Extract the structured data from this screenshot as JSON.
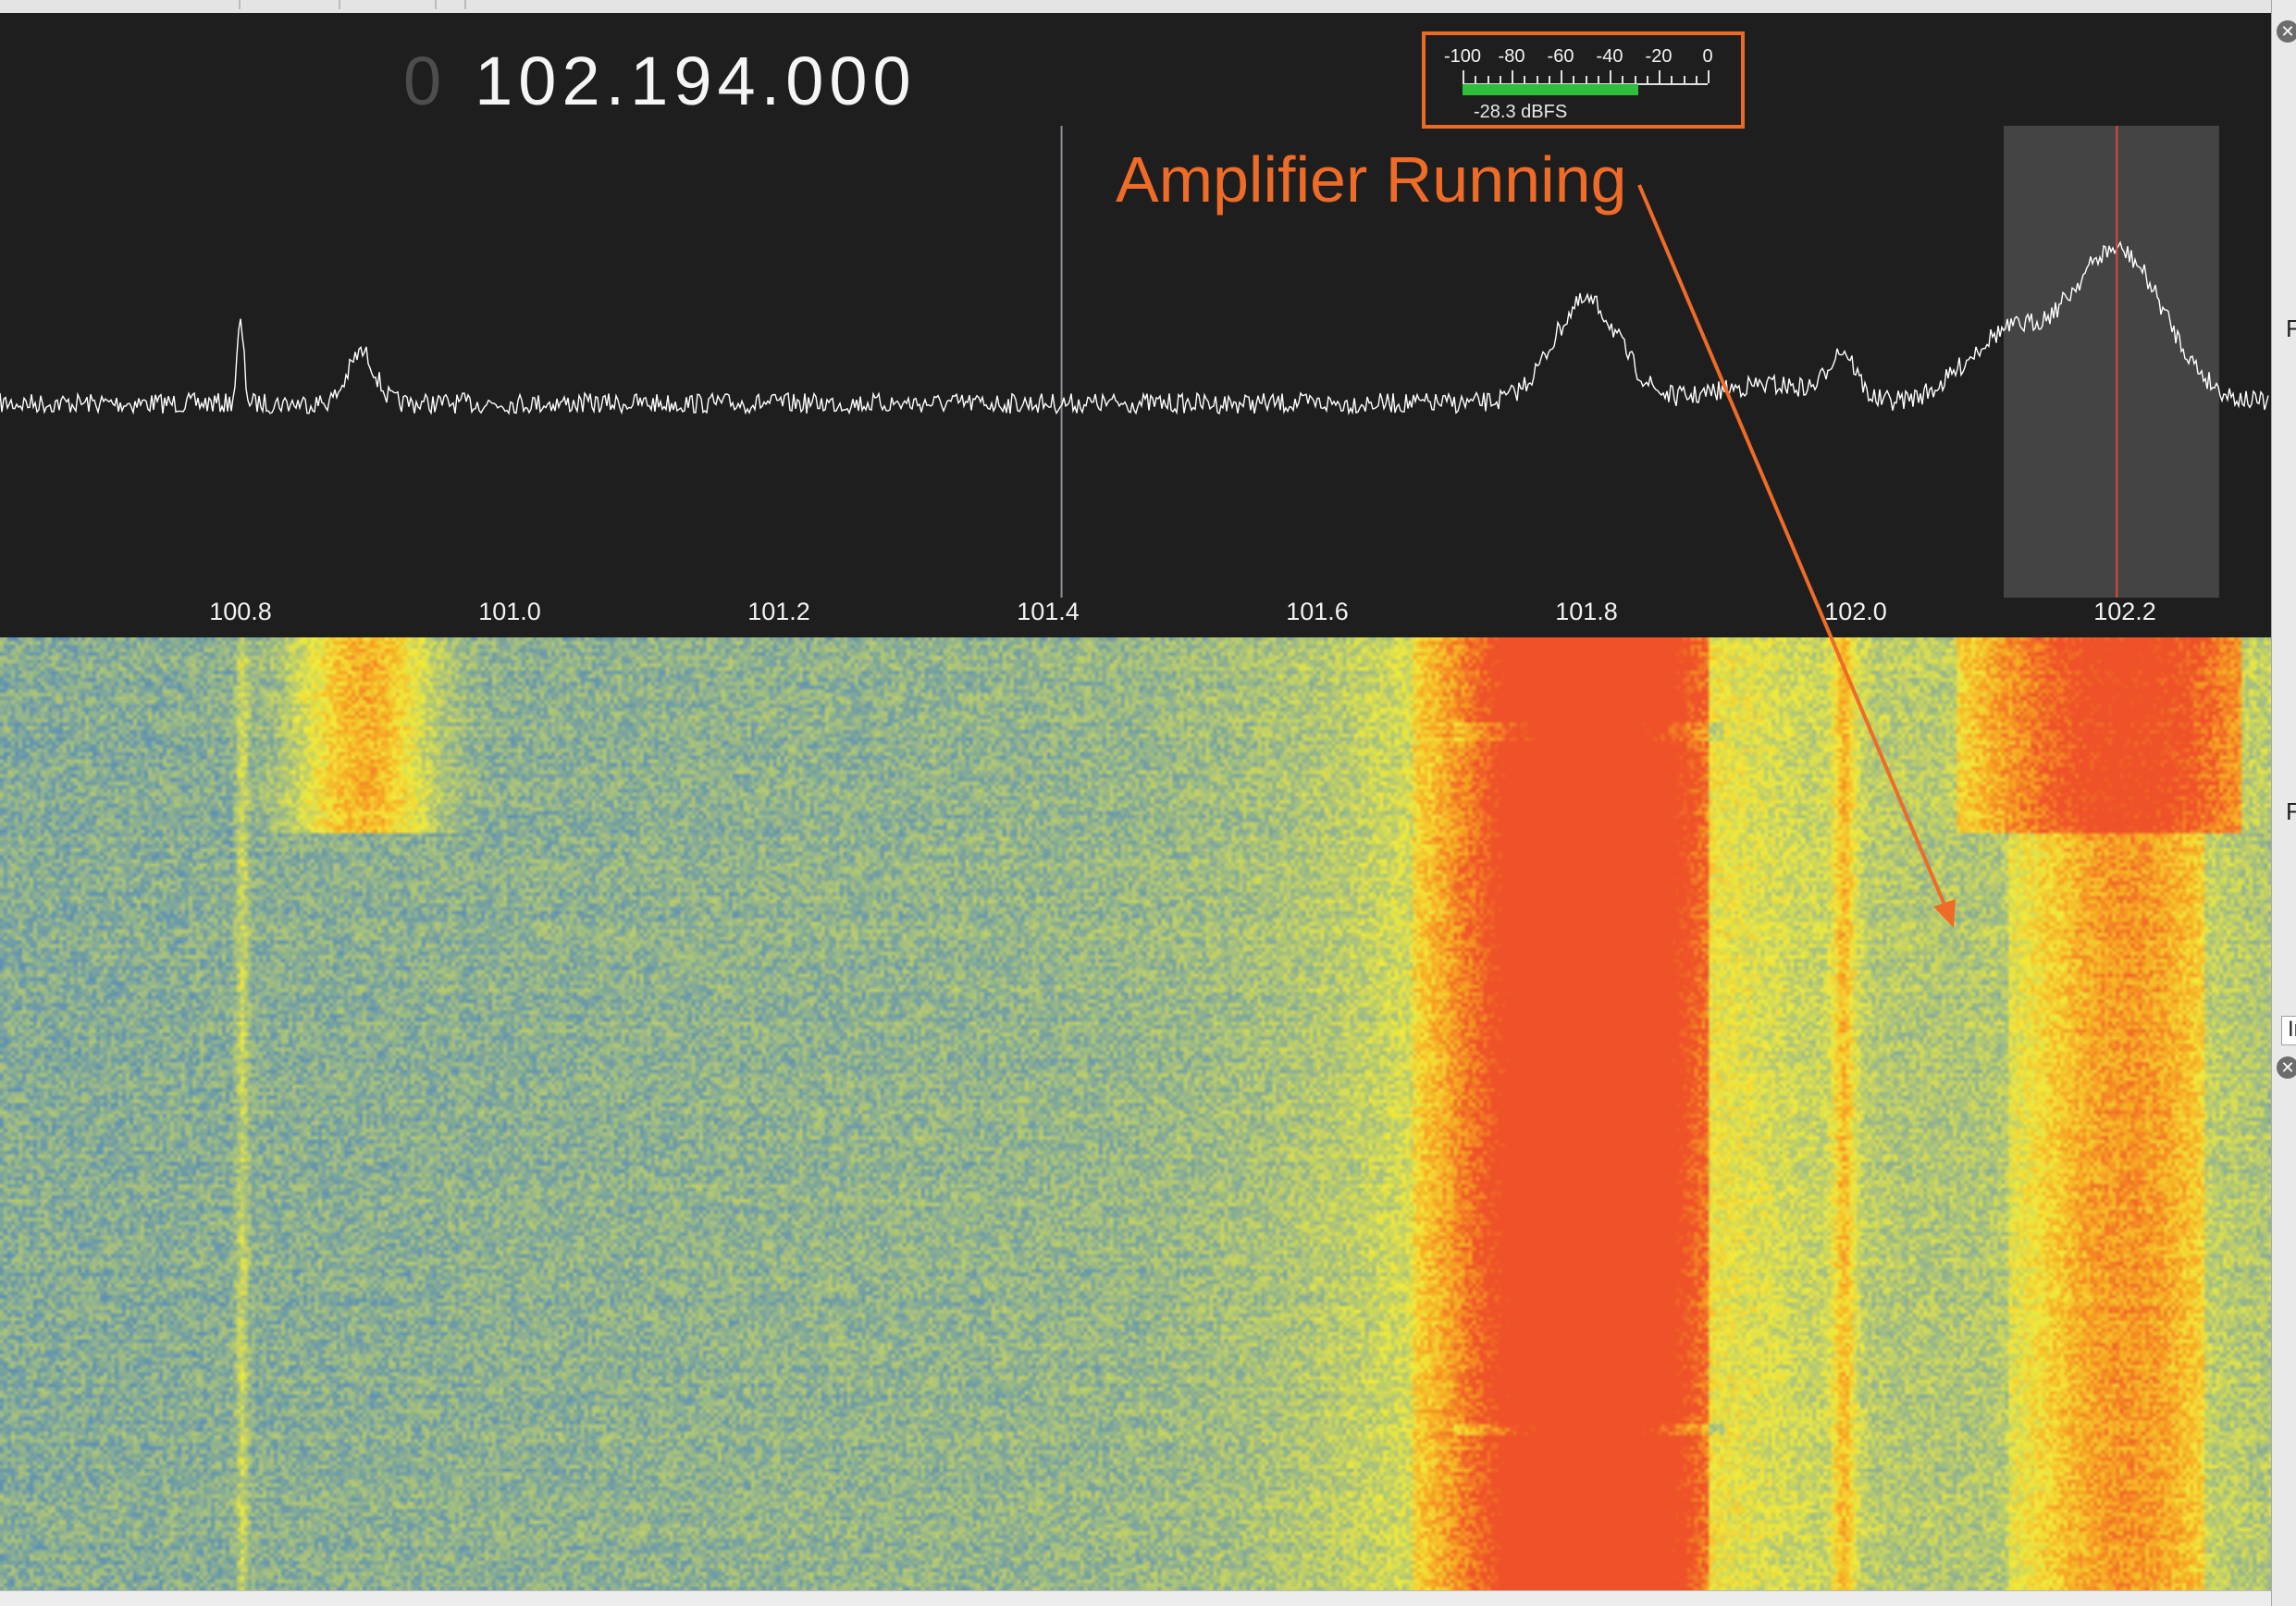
{
  "frequency": {
    "leading_digit": "0",
    "value": "102.194.000"
  },
  "level_meter": {
    "scale_labels": [
      "-100",
      "-80",
      "-60",
      "-40",
      "-20",
      "0"
    ],
    "readout": "-28.3 dBFS",
    "level_dbfs": -28.3,
    "range_dbfs": [
      -100,
      0
    ],
    "bar_color": "#2fbf3c"
  },
  "annotation": {
    "text": "Amplifier Running",
    "color": "#ee6b28"
  },
  "frequency_axis": {
    "labels": [
      "100.8",
      "101.0",
      "101.2",
      "101.4",
      "101.6",
      "101.8",
      "102.0",
      "102.2"
    ],
    "range_mhz": [
      100.62,
      102.35
    ]
  },
  "spectrum": {
    "trace_color": "#ffffff",
    "background_color": "#1f1e1f",
    "selected_frequency_mhz": 102.194,
    "selection_range_mhz": [
      102.11,
      102.27
    ],
    "marker_frequency_mhz": 101.41,
    "peaks_mhz": [
      100.8,
      100.89,
      101.8,
      101.99,
      102.11,
      102.194
    ]
  },
  "waterfall": {
    "colors": [
      "#5c90b4",
      "#a7c17e",
      "#f2ec3c",
      "#f7a623",
      "#ef5128"
    ]
  },
  "side_panel": {
    "letters": [
      "F",
      "F",
      "In"
    ]
  }
}
